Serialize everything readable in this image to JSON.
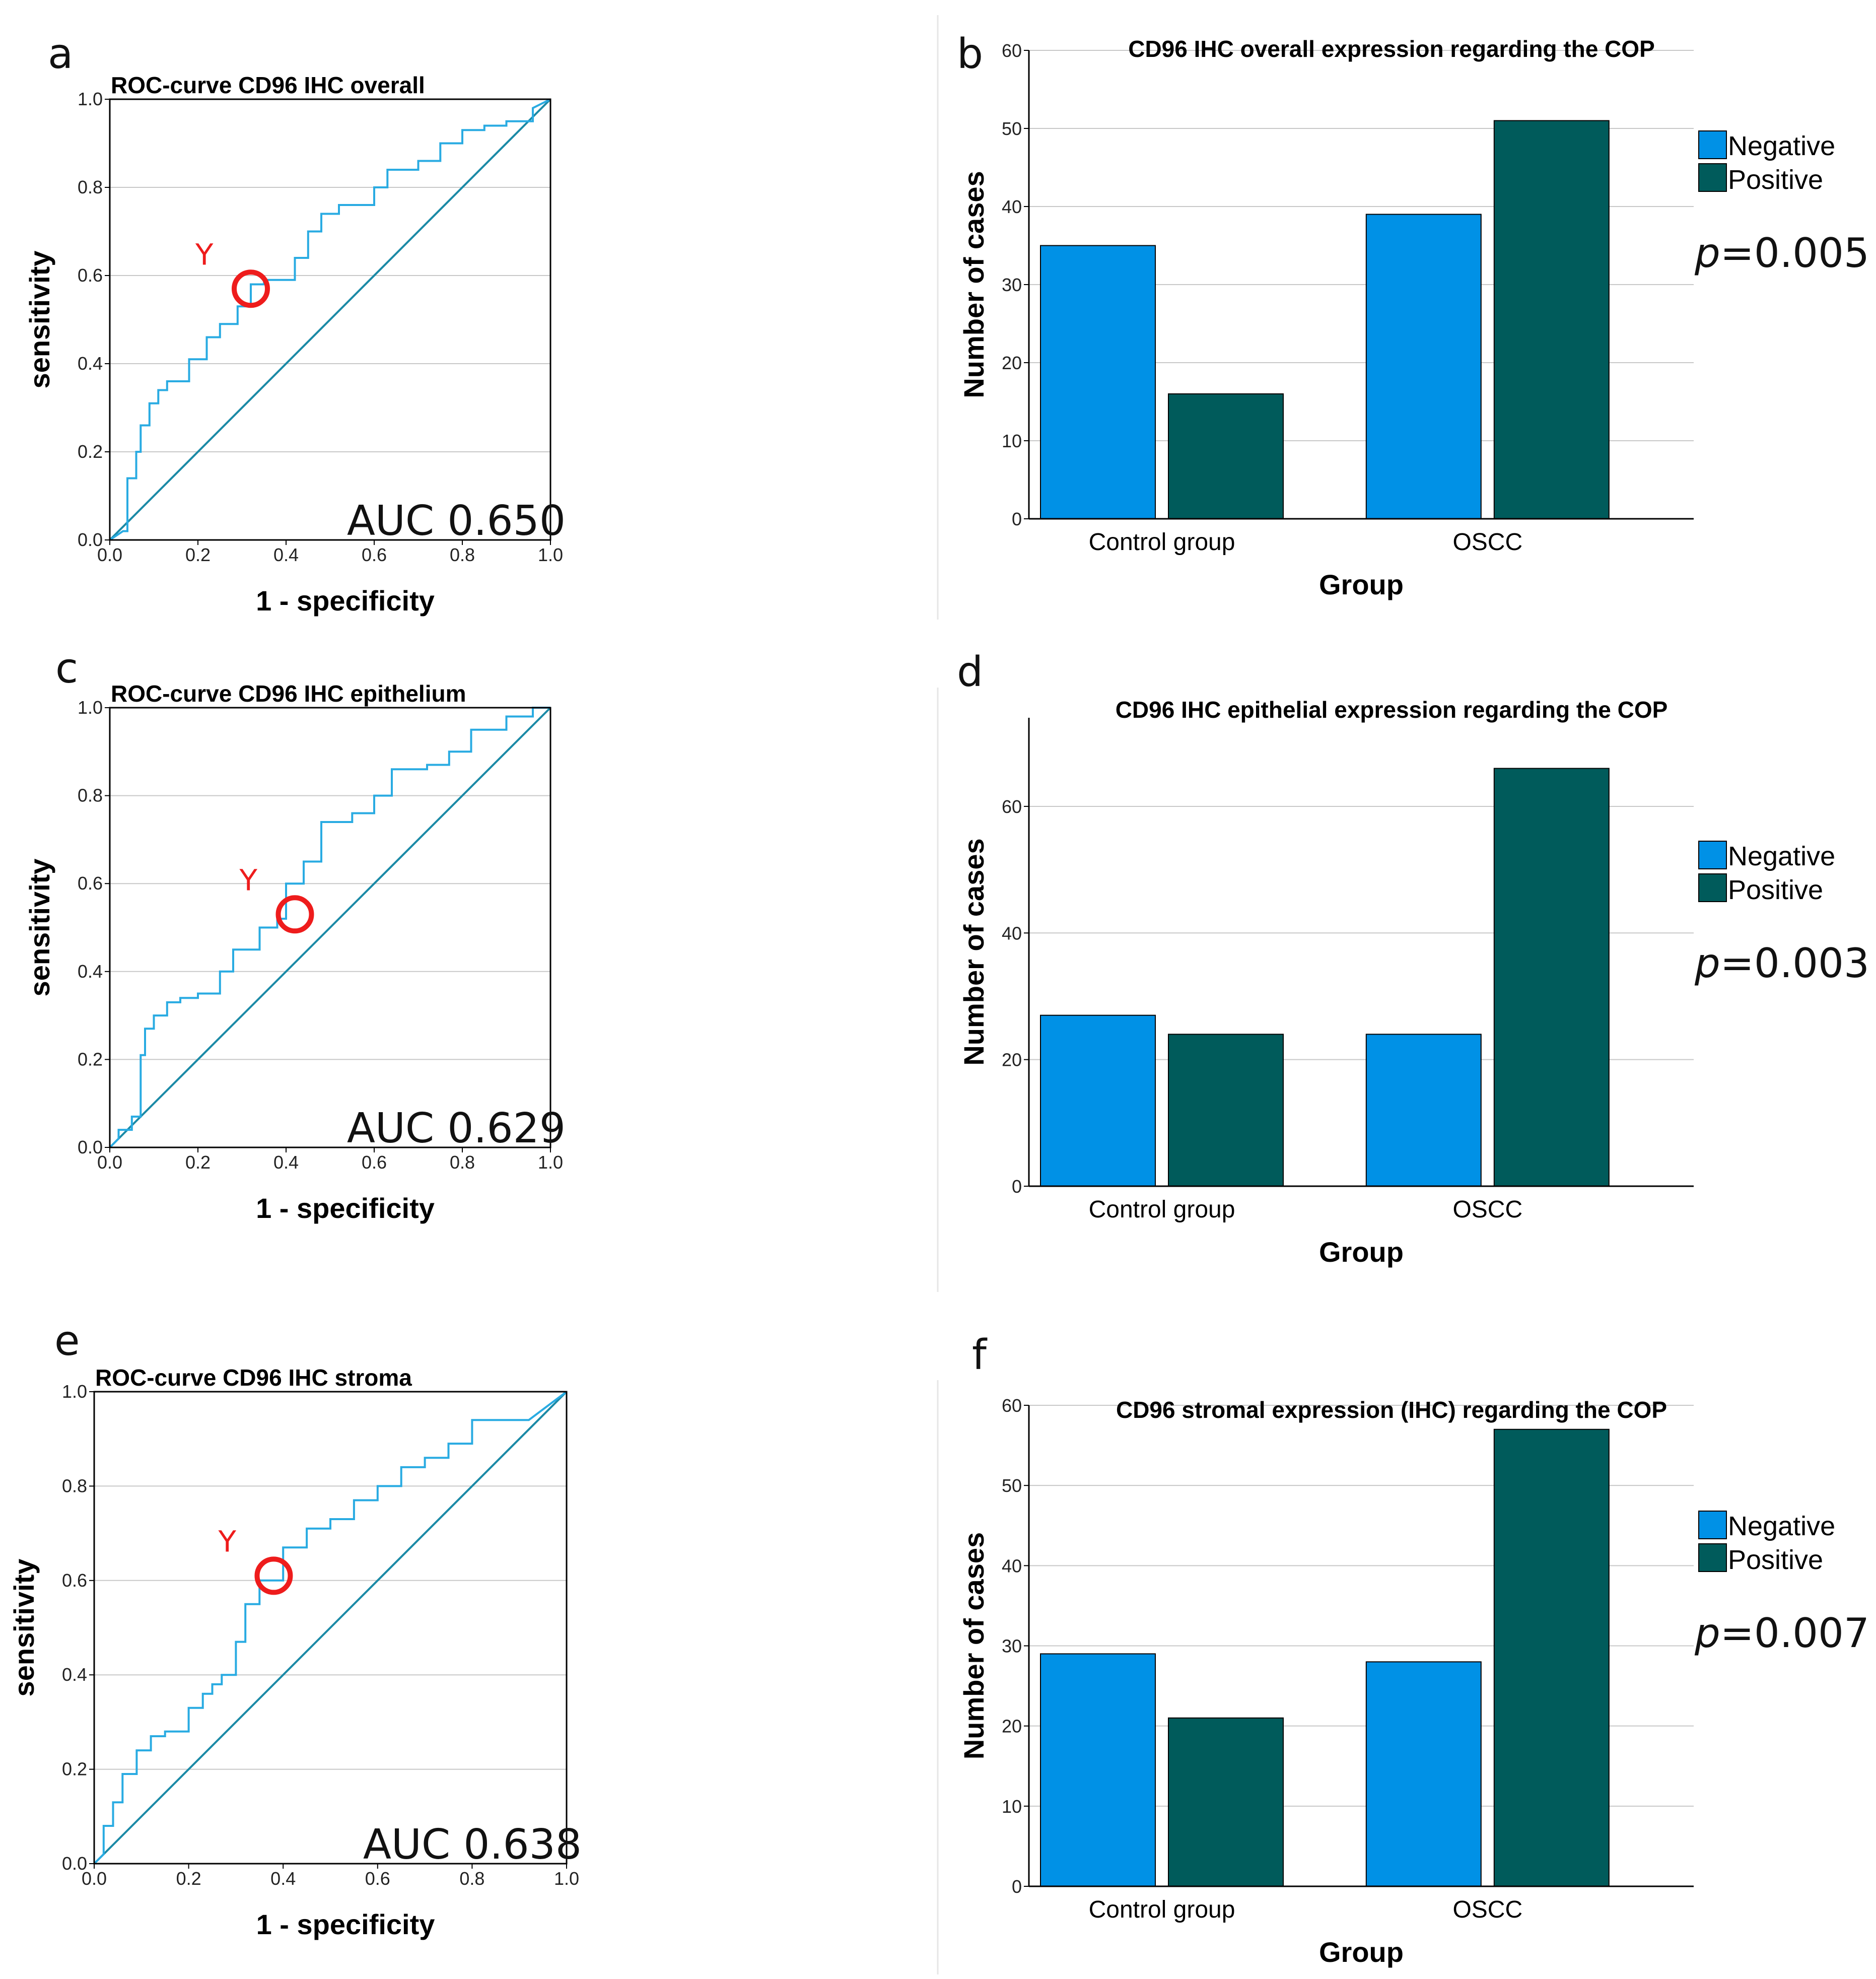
{
  "colors": {
    "roc_curve": "#29abe2",
    "diagonal": "#1b8aa6",
    "grid": "#c8c8c8",
    "negative": "#0091e6",
    "positive": "#005b5b",
    "marker": "#ee1c1c"
  },
  "panels": {
    "a": "a",
    "b": "b",
    "c": "c",
    "d": "d",
    "e": "e",
    "f": "f"
  },
  "chart_data": [
    {
      "id": "roc-overall",
      "type": "line",
      "panel": "a",
      "title": "ROC-curve CD96 IHC overall",
      "xlabel": "1 - specificity",
      "ylabel": "sensitivity",
      "xlim": [
        0,
        1
      ],
      "ylim": [
        0,
        1
      ],
      "ticks": [
        "0.0",
        "0.2",
        "0.4",
        "0.6",
        "0.8",
        "1.0"
      ],
      "grid": true,
      "auc_label": "AUC 0.650",
      "marker_label": "Y",
      "marker_point": [
        0.32,
        0.57
      ],
      "roc": {
        "x": [
          0,
          0.03,
          0.04,
          0.04,
          0.06,
          0.06,
          0.07,
          0.07,
          0.09,
          0.09,
          0.11,
          0.11,
          0.13,
          0.13,
          0.18,
          0.18,
          0.22,
          0.22,
          0.25,
          0.25,
          0.29,
          0.29,
          0.32,
          0.32,
          0.35,
          0.35,
          0.42,
          0.42,
          0.45,
          0.45,
          0.48,
          0.48,
          0.52,
          0.52,
          0.6,
          0.6,
          0.63,
          0.63,
          0.7,
          0.7,
          0.75,
          0.75,
          0.8,
          0.8,
          0.85,
          0.85,
          0.9,
          0.9,
          0.96,
          0.96,
          1
        ],
        "y": [
          0,
          0.02,
          0.02,
          0.14,
          0.14,
          0.2,
          0.2,
          0.26,
          0.26,
          0.31,
          0.31,
          0.34,
          0.34,
          0.36,
          0.36,
          0.41,
          0.41,
          0.46,
          0.46,
          0.49,
          0.49,
          0.53,
          0.53,
          0.58,
          0.58,
          0.59,
          0.59,
          0.64,
          0.64,
          0.7,
          0.7,
          0.74,
          0.74,
          0.76,
          0.76,
          0.8,
          0.8,
          0.84,
          0.84,
          0.86,
          0.86,
          0.9,
          0.9,
          0.93,
          0.93,
          0.94,
          0.94,
          0.95,
          0.95,
          0.98,
          1
        ]
      }
    },
    {
      "id": "bar-overall",
      "type": "bar",
      "panel": "b",
      "title": "CD96 IHC overall expression regarding the COP",
      "xlabel": "Group",
      "ylabel": "Number of cases",
      "categories": [
        "Control group",
        "OSCC"
      ],
      "series": [
        {
          "name": "Negative",
          "values": [
            35,
            39
          ]
        },
        {
          "name": "Positive",
          "values": [
            16,
            51
          ]
        }
      ],
      "ylim": [
        0,
        60
      ],
      "yticks": [
        0,
        10,
        20,
        30,
        40,
        50,
        60
      ],
      "p_value": "p=0.005"
    },
    {
      "id": "roc-epithelium",
      "type": "line",
      "panel": "c",
      "title": "ROC-curve CD96 IHC epithelium",
      "xlabel": "1 - specificity",
      "ylabel": "sensitivity",
      "xlim": [
        0,
        1
      ],
      "ylim": [
        0,
        1
      ],
      "ticks": [
        "0.0",
        "0.2",
        "0.4",
        "0.6",
        "0.8",
        "1.0"
      ],
      "grid": true,
      "auc_label": "AUC 0.629",
      "marker_label": "Y",
      "marker_point": [
        0.42,
        0.53
      ],
      "roc": {
        "x": [
          0,
          0.02,
          0.02,
          0.05,
          0.05,
          0.07,
          0.07,
          0.08,
          0.08,
          0.1,
          0.1,
          0.13,
          0.13,
          0.16,
          0.16,
          0.2,
          0.2,
          0.25,
          0.25,
          0.28,
          0.28,
          0.34,
          0.34,
          0.38,
          0.38,
          0.4,
          0.4,
          0.44,
          0.44,
          0.48,
          0.48,
          0.55,
          0.55,
          0.6,
          0.6,
          0.64,
          0.64,
          0.72,
          0.72,
          0.77,
          0.77,
          0.82,
          0.82,
          0.9,
          0.9,
          0.96,
          0.96,
          1
        ],
        "y": [
          0,
          0.02,
          0.04,
          0.04,
          0.07,
          0.07,
          0.21,
          0.21,
          0.27,
          0.27,
          0.3,
          0.3,
          0.33,
          0.33,
          0.34,
          0.34,
          0.35,
          0.35,
          0.4,
          0.4,
          0.45,
          0.45,
          0.5,
          0.5,
          0.52,
          0.52,
          0.6,
          0.6,
          0.65,
          0.65,
          0.74,
          0.74,
          0.76,
          0.76,
          0.8,
          0.8,
          0.86,
          0.86,
          0.87,
          0.87,
          0.9,
          0.9,
          0.95,
          0.95,
          0.98,
          0.98,
          1,
          1
        ]
      }
    },
    {
      "id": "bar-epithelium",
      "type": "bar",
      "panel": "d",
      "title": "CD96 IHC epithelial expression regarding the COP",
      "xlabel": "Group",
      "ylabel": "Number of cases",
      "categories": [
        "Control group",
        "OSCC"
      ],
      "series": [
        {
          "name": "Negative",
          "values": [
            27,
            24
          ]
        },
        {
          "name": "Positive",
          "values": [
            24,
            66
          ]
        }
      ],
      "ylim": [
        0,
        74
      ],
      "yticks": [
        0,
        20,
        40,
        60
      ],
      "p_value": "p=0.003"
    },
    {
      "id": "roc-stroma",
      "type": "line",
      "panel": "e",
      "title": "ROC-curve CD96 IHC stroma",
      "xlabel": "1 - specificity",
      "ylabel": "sensitivity",
      "xlim": [
        0,
        1
      ],
      "ylim": [
        0,
        1
      ],
      "ticks": [
        "0.0",
        "0.2",
        "0.4",
        "0.6",
        "0.8",
        "1.0"
      ],
      "grid": true,
      "auc_label": "AUC 0.638",
      "marker_label": "Y",
      "marker_point": [
        0.38,
        0.61
      ],
      "roc": {
        "x": [
          0,
          0.02,
          0.02,
          0.04,
          0.04,
          0.06,
          0.06,
          0.09,
          0.09,
          0.12,
          0.12,
          0.15,
          0.15,
          0.2,
          0.2,
          0.23,
          0.23,
          0.25,
          0.25,
          0.27,
          0.27,
          0.3,
          0.3,
          0.32,
          0.32,
          0.35,
          0.35,
          0.4,
          0.4,
          0.45,
          0.45,
          0.5,
          0.5,
          0.55,
          0.55,
          0.6,
          0.6,
          0.65,
          0.65,
          0.7,
          0.7,
          0.75,
          0.75,
          0.8,
          0.8,
          0.86,
          0.86,
          0.92,
          1
        ],
        "y": [
          0,
          0.02,
          0.08,
          0.08,
          0.13,
          0.13,
          0.19,
          0.19,
          0.24,
          0.24,
          0.27,
          0.27,
          0.28,
          0.28,
          0.33,
          0.33,
          0.36,
          0.36,
          0.38,
          0.38,
          0.4,
          0.4,
          0.47,
          0.47,
          0.55,
          0.55,
          0.6,
          0.6,
          0.67,
          0.67,
          0.71,
          0.71,
          0.73,
          0.73,
          0.77,
          0.77,
          0.8,
          0.8,
          0.84,
          0.84,
          0.86,
          0.86,
          0.89,
          0.89,
          0.94,
          0.94,
          0.94,
          0.94,
          1
        ]
      }
    },
    {
      "id": "bar-stroma",
      "type": "bar",
      "panel": "f",
      "title": "CD96 stromal expression (IHC) regarding the COP",
      "xlabel": "Group",
      "ylabel": "Number of cases",
      "categories": [
        "Control group",
        "OSCC"
      ],
      "series": [
        {
          "name": "Negative",
          "values": [
            29,
            28
          ]
        },
        {
          "name": "Positive",
          "values": [
            21,
            57
          ]
        }
      ],
      "ylim": [
        0,
        60
      ],
      "yticks": [
        0,
        10,
        20,
        30,
        40,
        50,
        60
      ],
      "p_value": "p=0.007"
    }
  ]
}
